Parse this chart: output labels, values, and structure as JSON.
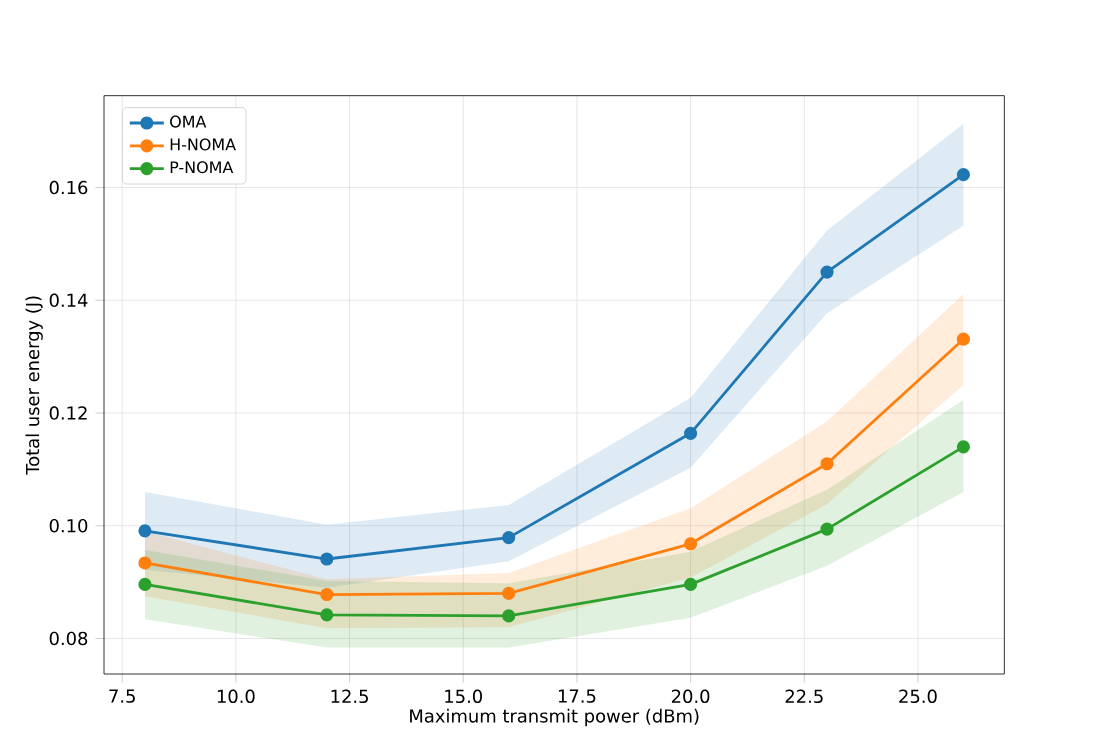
{
  "chart_data": {
    "type": "line",
    "xlabel": "Maximum transmit power (dBm)",
    "ylabel": "Total user energy (J)",
    "x": [
      8,
      12,
      16,
      20,
      23,
      26
    ],
    "series": [
      {
        "name": "OMA",
        "color": "#1f77b4",
        "values": [
          0.0991,
          0.0941,
          0.0979,
          0.1164,
          0.145,
          0.1623
        ],
        "lower": [
          0.0922,
          0.089,
          0.0937,
          0.1103,
          0.1377,
          0.1532
        ],
        "upper": [
          0.106,
          0.1002,
          0.1037,
          0.1227,
          0.1524,
          0.1713
        ]
      },
      {
        "name": "H-NOMA",
        "color": "#ff7f0e",
        "values": [
          0.0934,
          0.0878,
          0.088,
          0.0968,
          0.111,
          0.1331
        ],
        "lower": [
          0.0875,
          0.0818,
          0.082,
          0.0908,
          0.1038,
          0.125
        ],
        "upper": [
          0.099,
          0.0905,
          0.0916,
          0.1031,
          0.1185,
          0.1411
        ]
      },
      {
        "name": "P-NOMA",
        "color": "#2ca02c",
        "values": [
          0.0896,
          0.0842,
          0.084,
          0.0896,
          0.0994,
          0.114
        ],
        "lower": [
          0.0834,
          0.0784,
          0.0784,
          0.0837,
          0.0929,
          0.106
        ],
        "upper": [
          0.0957,
          0.0902,
          0.0898,
          0.0954,
          0.1064,
          0.1223
        ]
      }
    ],
    "xlim": [
      7.1,
      26.9
    ],
    "ylim": [
      0.0737,
      0.1763
    ],
    "xticks": [
      {
        "value": 7.5,
        "label": "7.5"
      },
      {
        "value": 10,
        "label": "10.0"
      },
      {
        "value": 12.5,
        "label": "12.5"
      },
      {
        "value": 15,
        "label": "15.0"
      },
      {
        "value": 17.5,
        "label": "17.5"
      },
      {
        "value": 20,
        "label": "20.0"
      },
      {
        "value": 22.5,
        "label": "22.5"
      },
      {
        "value": 25,
        "label": "25.0"
      }
    ],
    "yticks": [
      {
        "value": 0.08,
        "label": "0.08"
      },
      {
        "value": 0.1,
        "label": "0.10"
      },
      {
        "value": 0.12,
        "label": "0.12"
      },
      {
        "value": 0.14,
        "label": "0.14"
      },
      {
        "value": 0.16,
        "label": "0.16"
      }
    ],
    "grid": true,
    "legend": "top left",
    "marker": "circle",
    "line_style": "solid"
  }
}
